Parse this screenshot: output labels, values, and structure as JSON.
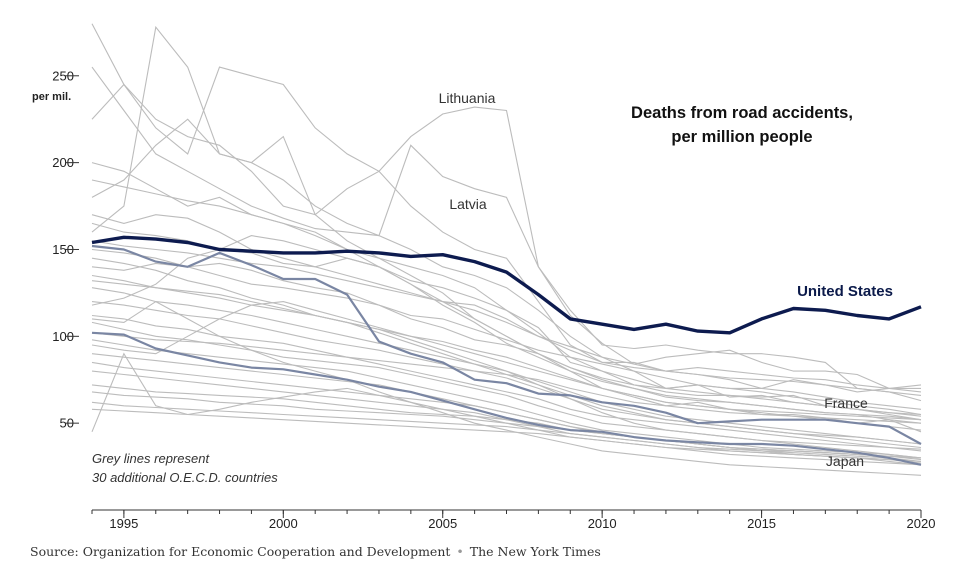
{
  "chart_data": {
    "type": "line",
    "title": [
      "Deaths from road accidents,",
      "per million people"
    ],
    "ylabel_unit": "per mil.",
    "xlim": [
      1994,
      2020
    ],
    "ylim": [
      0,
      285
    ],
    "x_ticks": [
      1995,
      2000,
      2005,
      2010,
      2015,
      2020
    ],
    "y_ticks": [
      50,
      100,
      150,
      200,
      250
    ],
    "x": [
      1994,
      1995,
      1996,
      1997,
      1998,
      1999,
      2000,
      2001,
      2002,
      2003,
      2004,
      2005,
      2006,
      2007,
      2008,
      2009,
      2010,
      2011,
      2012,
      2013,
      2014,
      2015,
      2016,
      2017,
      2018,
      2019,
      2020
    ],
    "highlighted_series": [
      {
        "name": "United States",
        "color": "#0d1b4f",
        "values": [
          154,
          157,
          156,
          154,
          150,
          149,
          148,
          148,
          149,
          148,
          146,
          147,
          143,
          137,
          124,
          110,
          107,
          104,
          107,
          103,
          102,
          110,
          116,
          115,
          112,
          110,
          117
        ]
      },
      {
        "name": "France",
        "color": "#7a86a3",
        "values": [
          152,
          150,
          143,
          140,
          148,
          141,
          133,
          133,
          124,
          97,
          90,
          85,
          75,
          73,
          67,
          66,
          62,
          60,
          56,
          50,
          51,
          52,
          52,
          52,
          50,
          48,
          38
        ]
      },
      {
        "name": "Japan",
        "color": "#7a86a3",
        "values": [
          102,
          101,
          93,
          89,
          85,
          82,
          81,
          78,
          75,
          71,
          68,
          63,
          58,
          53,
          49,
          46,
          45,
          42,
          40,
          39,
          38,
          38,
          37,
          35,
          33,
          30,
          26
        ]
      }
    ],
    "grey_series": [
      {
        "name": "Lithuania",
        "values": [
          280,
          245,
          225,
          215,
          210,
          195,
          175,
          170,
          185,
          195,
          215,
          228,
          232,
          230,
          140,
          115,
          95,
          93,
          95,
          92,
          90,
          90,
          88,
          85,
          70,
          68,
          63
        ]
      },
      {
        "name": "Latvia",
        "values": [
          255,
          230,
          205,
          195,
          185,
          175,
          168,
          162,
          160,
          158,
          210,
          192,
          185,
          180,
          140,
          112,
          96,
          84,
          88,
          90,
          92,
          85,
          80,
          80,
          78,
          70,
          72
        ]
      },
      {
        "name": "grey-3",
        "values": [
          160,
          175,
          278,
          255,
          205,
          200,
          215,
          170,
          155,
          145,
          140,
          135,
          128,
          115,
          105,
          85,
          80,
          75,
          70,
          72,
          70,
          68,
          65,
          63,
          60,
          58,
          55
        ]
      },
      {
        "name": "grey-4",
        "values": [
          225,
          245,
          220,
          205,
          255,
          250,
          245,
          220,
          205,
          195,
          175,
          160,
          150,
          145,
          120,
          95,
          85,
          85,
          80,
          78,
          75,
          70,
          75,
          72,
          68,
          70,
          68
        ]
      },
      {
        "name": "grey-5",
        "values": [
          180,
          190,
          210,
          225,
          205,
          200,
          190,
          175,
          165,
          158,
          150,
          140,
          135,
          128,
          115,
          100,
          88,
          80,
          70,
          72,
          65,
          66,
          62,
          60,
          58,
          55,
          52
        ]
      },
      {
        "name": "grey-6",
        "values": [
          200,
          195,
          185,
          175,
          180,
          170,
          165,
          160,
          150,
          145,
          135,
          125,
          110,
          100,
          90,
          80,
          70,
          65,
          60,
          62,
          58,
          55,
          55,
          53,
          50,
          52,
          50
        ]
      },
      {
        "name": "grey-7",
        "values": [
          170,
          165,
          170,
          168,
          160,
          150,
          145,
          140,
          145,
          140,
          132,
          128,
          122,
          115,
          102,
          88,
          80,
          72,
          68,
          66,
          66,
          65,
          66,
          60,
          58,
          56,
          55
        ]
      },
      {
        "name": "grey-8",
        "values": [
          165,
          160,
          158,
          155,
          150,
          148,
          142,
          140,
          135,
          130,
          125,
          120,
          118,
          110,
          100,
          92,
          85,
          82,
          80,
          82,
          80,
          78,
          76,
          75,
          72,
          70,
          70
        ]
      },
      {
        "name": "grey-9",
        "values": [
          140,
          138,
          142,
          140,
          135,
          130,
          128,
          125,
          122,
          118,
          110,
          105,
          98,
          95,
          90,
          82,
          75,
          70,
          65,
          63,
          62,
          60,
          58,
          56,
          55,
          52,
          45
        ]
      },
      {
        "name": "grey-10",
        "values": [
          150,
          148,
          145,
          140,
          142,
          138,
          132,
          128,
          125,
          118,
          112,
          110,
          104,
          98,
          92,
          88,
          84,
          80,
          76,
          72,
          70,
          70,
          68,
          65,
          62,
          60,
          58
        ]
      },
      {
        "name": "grey-11",
        "values": [
          135,
          132,
          128,
          125,
          122,
          118,
          115,
          112,
          108,
          104,
          100,
          97,
          92,
          88,
          82,
          76,
          70,
          66,
          62,
          60,
          58,
          56,
          54,
          52,
          50,
          48,
          46
        ]
      },
      {
        "name": "grey-12",
        "values": [
          128,
          125,
          120,
          118,
          115,
          112,
          108,
          104,
          100,
          96,
          92,
          88,
          84,
          80,
          74,
          68,
          62,
          58,
          54,
          52,
          50,
          48,
          46,
          44,
          42,
          40,
          38
        ]
      },
      {
        "name": "grey-13",
        "values": [
          120,
          118,
          115,
          112,
          110,
          106,
          102,
          98,
          95,
          92,
          88,
          84,
          80,
          76,
          70,
          64,
          58,
          55,
          52,
          50,
          48,
          46,
          44,
          42,
          40,
          38,
          36
        ]
      },
      {
        "name": "grey-14",
        "values": [
          112,
          110,
          106,
          104,
          100,
          98,
          96,
          92,
          88,
          84,
          80,
          76,
          72,
          68,
          64,
          58,
          54,
          52,
          50,
          48,
          46,
          44,
          42,
          40,
          38,
          36,
          34
        ]
      },
      {
        "name": "grey-15",
        "values": [
          108,
          104,
          100,
          98,
          95,
          92,
          88,
          86,
          84,
          82,
          78,
          74,
          70,
          66,
          60,
          55,
          50,
          48,
          46,
          44,
          42,
          40,
          38,
          36,
          34,
          32,
          30
        ]
      },
      {
        "name": "grey-16",
        "values": [
          98,
          95,
          92,
          90,
          88,
          86,
          84,
          82,
          80,
          76,
          72,
          68,
          64,
          60,
          55,
          50,
          46,
          44,
          42,
          40,
          38,
          36,
          35,
          34,
          33,
          32,
          30
        ]
      },
      {
        "name": "grey-17",
        "values": [
          90,
          88,
          86,
          84,
          82,
          80,
          78,
          76,
          74,
          72,
          68,
          64,
          60,
          56,
          52,
          48,
          45,
          42,
          40,
          38,
          36,
          35,
          34,
          33,
          32,
          31,
          29
        ]
      },
      {
        "name": "grey-18",
        "values": [
          85,
          82,
          80,
          78,
          76,
          74,
          72,
          70,
          68,
          66,
          64,
          62,
          60,
          56,
          52,
          48,
          44,
          42,
          40,
          38,
          36,
          34,
          34,
          33,
          32,
          31,
          30
        ]
      },
      {
        "name": "grey-19",
        "values": [
          80,
          78,
          76,
          74,
          72,
          70,
          68,
          66,
          64,
          62,
          60,
          58,
          56,
          52,
          48,
          44,
          42,
          40,
          38,
          36,
          35,
          34,
          33,
          32,
          31,
          30,
          28
        ]
      },
      {
        "name": "grey-20",
        "values": [
          72,
          70,
          68,
          67,
          66,
          65,
          64,
          62,
          60,
          58,
          56,
          55,
          54,
          52,
          50,
          46,
          44,
          42,
          40,
          38,
          36,
          35,
          34,
          33,
          32,
          31,
          30
        ]
      },
      {
        "name": "grey-21",
        "values": [
          68,
          66,
          65,
          64,
          62,
          61,
          60,
          58,
          57,
          56,
          55,
          54,
          52,
          50,
          48,
          46,
          44,
          42,
          40,
          38,
          36,
          34,
          32,
          31,
          30,
          28,
          26
        ]
      },
      {
        "name": "grey-22",
        "values": [
          62,
          60,
          59,
          58,
          57,
          56,
          55,
          54,
          53,
          52,
          51,
          50,
          49,
          48,
          46,
          44,
          42,
          40,
          38,
          36,
          34,
          33,
          32,
          31,
          30,
          29,
          28
        ]
      },
      {
        "name": "grey-23",
        "values": [
          58,
          57,
          56,
          55,
          54,
          53,
          52,
          51,
          50,
          49,
          48,
          47,
          46,
          45,
          44,
          42,
          40,
          38,
          36,
          35,
          34,
          33,
          32,
          31,
          30,
          29,
          27
        ]
      },
      {
        "name": "grey-24",
        "values": [
          145,
          142,
          138,
          132,
          128,
          122,
          118,
          112,
          108,
          102,
          96,
          90,
          84,
          78,
          72,
          66,
          60,
          56,
          52,
          50,
          48,
          46,
          44,
          43,
          42,
          40,
          38
        ]
      },
      {
        "name": "grey-25",
        "values": [
          155,
          152,
          150,
          148,
          145,
          142,
          140,
          136,
          132,
          128,
          124,
          120,
          115,
          108,
          100,
          94,
          88,
          84,
          80,
          78,
          76,
          75,
          74,
          72,
          70,
          68,
          66
        ]
      },
      {
        "name": "grey-26",
        "values": [
          102,
          100,
          98,
          97,
          96,
          94,
          92,
          90,
          88,
          86,
          84,
          82,
          80,
          78,
          75,
          70,
          66,
          62,
          60,
          58,
          56,
          55,
          54,
          53,
          52,
          51,
          50
        ]
      },
      {
        "name": "grey-27",
        "values": [
          132,
          130,
          128,
          126,
          124,
          120,
          116,
          112,
          108,
          104,
          98,
          92,
          86,
          80,
          72,
          64,
          56,
          50,
          46,
          44,
          42,
          40,
          39,
          38,
          37,
          36,
          35
        ]
      },
      {
        "name": "grey-28",
        "values": [
          45,
          90,
          60,
          55,
          58,
          62,
          65,
          68,
          70,
          66,
          62,
          58,
          54,
          50,
          46,
          42,
          40,
          38,
          36,
          34,
          32,
          31,
          30,
          29,
          28,
          27,
          26
        ]
      },
      {
        "name": "grey-29",
        "values": [
          118,
          122,
          130,
          145,
          150,
          158,
          155,
          150,
          145,
          140,
          130,
          118,
          108,
          96,
          88,
          80,
          74,
          70,
          66,
          64,
          62,
          60,
          58,
          56,
          55,
          54,
          52
        ]
      },
      {
        "name": "grey-30",
        "values": [
          95,
          92,
          90,
          100,
          110,
          118,
          120,
          115,
          110,
          105,
          100,
          95,
          90,
          85,
          80,
          75,
          70,
          66,
          62,
          60,
          58,
          57,
          56,
          55,
          54,
          53,
          52
        ]
      },
      {
        "name": "grey-31",
        "values": [
          190,
          186,
          182,
          178,
          175,
          170,
          165,
          158,
          150,
          140,
          130,
          120,
          110,
          100,
          90,
          82,
          76,
          72,
          70,
          68,
          66,
          64,
          62,
          60,
          58,
          56,
          54
        ]
      },
      {
        "name": "grey-32",
        "values": [
          110,
          108,
          120,
          110,
          100,
          92,
          85,
          80,
          75,
          68,
          62,
          56,
          50,
          46,
          42,
          38,
          34,
          32,
          30,
          28,
          26,
          25,
          24,
          23,
          22,
          21,
          20
        ]
      }
    ],
    "annotations": [
      "Lithuania",
      "Latvia",
      "United States",
      "France",
      "Japan"
    ],
    "note": [
      "Grey lines represent",
      "30 additional O.E.C.D. countries"
    ]
  },
  "source": {
    "text": "Source: Organization for Economic Cooperation and Development",
    "separator": "•",
    "publisher": "The New York Times"
  }
}
